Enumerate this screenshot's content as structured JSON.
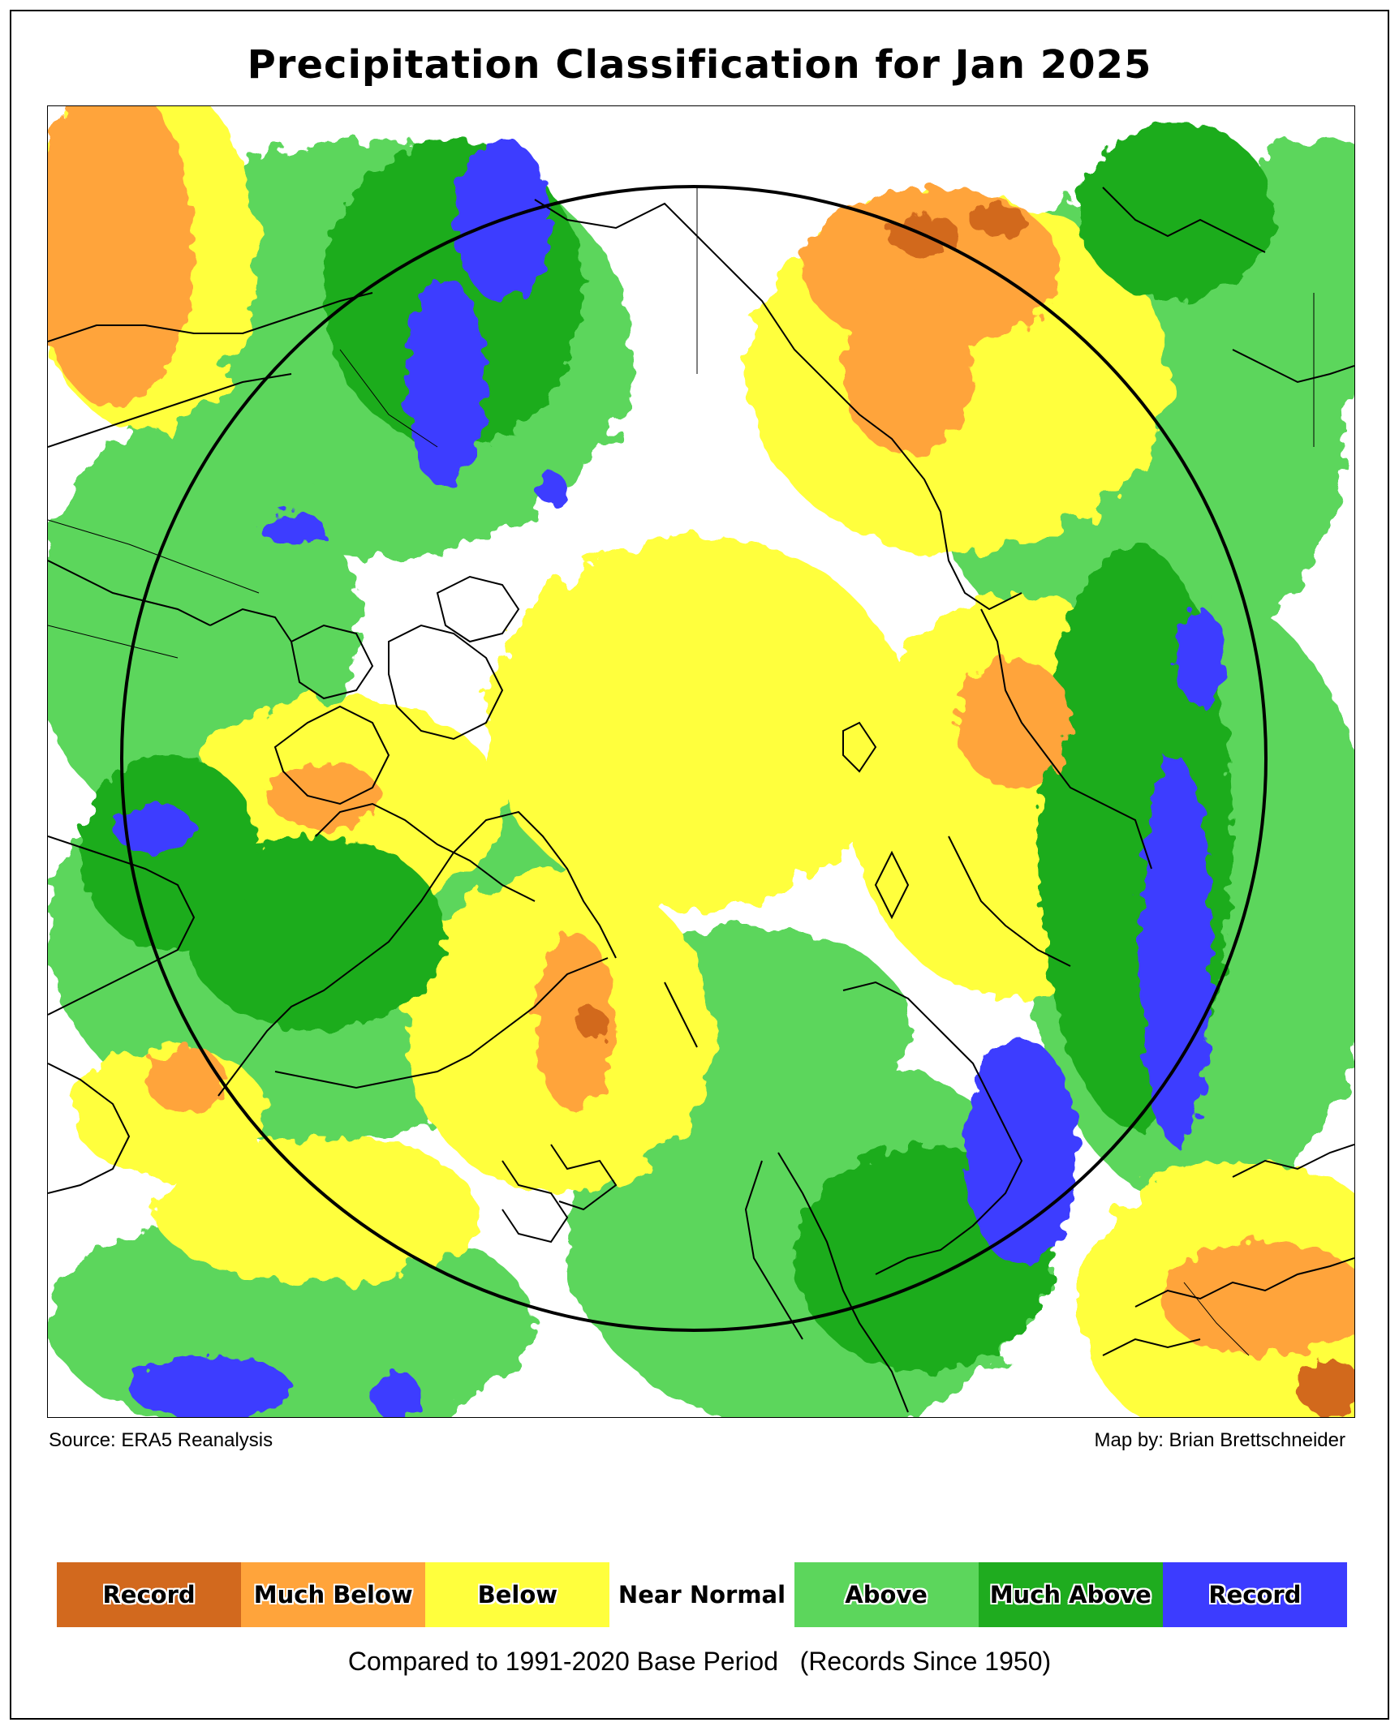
{
  "title": "Precipitation Classification for Jan 2025",
  "source_text": "Source: ERA5 Reanalysis",
  "credit_text": "Map by: Brian Brettschneider",
  "legend": {
    "items": [
      {
        "label": "Record",
        "color": "#d2691e"
      },
      {
        "label": "Much Below",
        "color": "#ffa43b"
      },
      {
        "label": "Below",
        "color": "#ffff3d"
      },
      {
        "label": "Near Normal",
        "color": "#ffffff"
      },
      {
        "label": "Above",
        "color": "#5cd65c"
      },
      {
        "label": "Much Above",
        "color": "#1fac1f"
      },
      {
        "label": "Record",
        "color": "#3c3cff"
      }
    ]
  },
  "caption": "Compared to 1991-2020 Base Period   (Records Since 1950)"
}
